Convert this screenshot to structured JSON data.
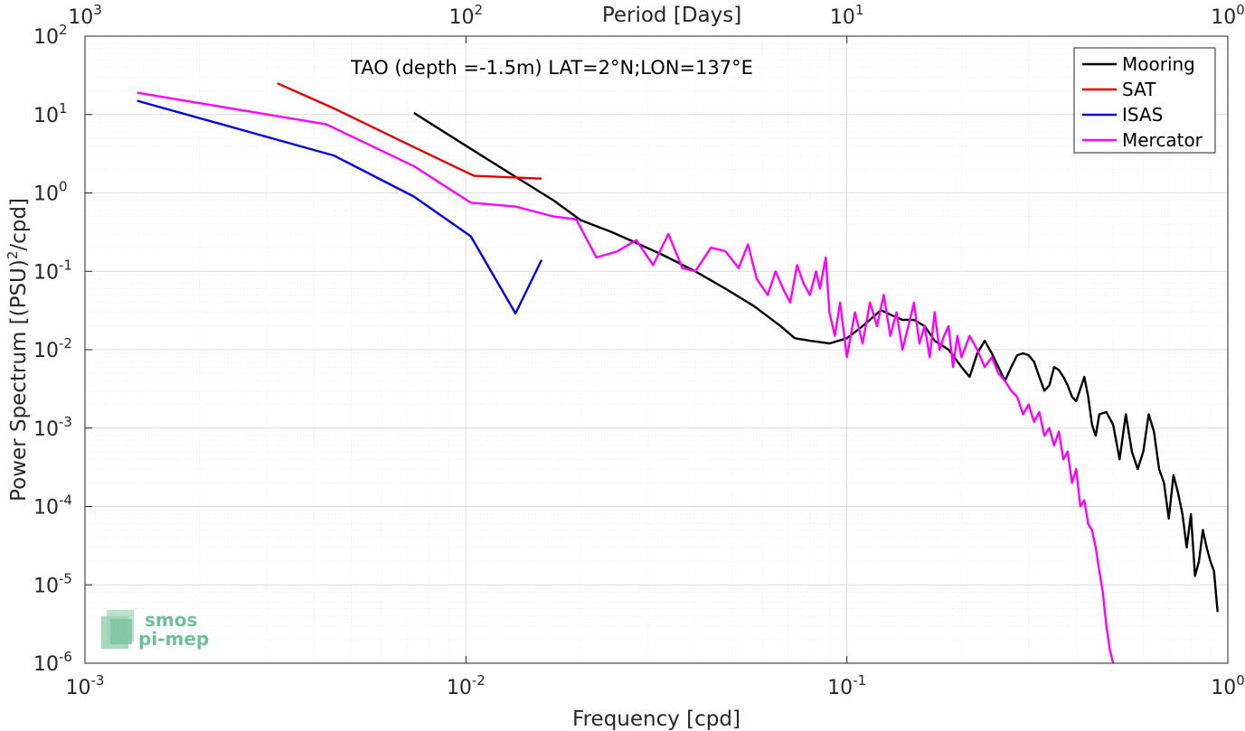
{
  "chart_data": {
    "type": "line",
    "scale": "log-log",
    "annotation": "TAO (depth =-1.5m) LAT=2°N;LON=137°E",
    "xlabel": "Frequency [cpd]",
    "ylabel": "Power Spectrum [(PSU)",
    "ylabel_sup": "2",
    "ylabel_tail": "/cpd]",
    "x2label": "Period [Days]",
    "xlim": [
      0.001,
      1
    ],
    "ylim": [
      1e-06,
      100
    ],
    "grid": true,
    "legend_position": "top-right",
    "x_ticks": [
      {
        "value": 0.001,
        "base": "10",
        "exp": "-3"
      },
      {
        "value": 0.01,
        "base": "10",
        "exp": "-2"
      },
      {
        "value": 0.1,
        "base": "10",
        "exp": "-1"
      },
      {
        "value": 1,
        "base": "10",
        "exp": "0"
      }
    ],
    "x2_ticks": [
      {
        "value": 0.001,
        "base": "10",
        "exp": "3"
      },
      {
        "value": 0.01,
        "base": "10",
        "exp": "2"
      },
      {
        "value": 0.1,
        "base": "10",
        "exp": "1"
      },
      {
        "value": 1,
        "base": "10",
        "exp": "0"
      }
    ],
    "y_ticks": [
      {
        "value": 100,
        "base": "10",
        "exp": "2"
      },
      {
        "value": 10,
        "base": "10",
        "exp": "1"
      },
      {
        "value": 1,
        "base": "10",
        "exp": "0"
      },
      {
        "value": 0.1,
        "base": "10",
        "exp": "-1"
      },
      {
        "value": 0.01,
        "base": "10",
        "exp": "-2"
      },
      {
        "value": 0.001,
        "base": "10",
        "exp": "-3"
      },
      {
        "value": 0.0001,
        "base": "10",
        "exp": "-4"
      },
      {
        "value": 1e-05,
        "base": "10",
        "exp": "-5"
      },
      {
        "value": 1e-06,
        "base": "10",
        "exp": "-6"
      }
    ],
    "series": [
      {
        "name": "Mooring",
        "color": "#000000",
        "x": [
          0.0073,
          0.01,
          0.013,
          0.017,
          0.02,
          0.024,
          0.028,
          0.033,
          0.04,
          0.048,
          0.057,
          0.067,
          0.073,
          0.08,
          0.09,
          0.1,
          0.11,
          0.123,
          0.13,
          0.14,
          0.15,
          0.16,
          0.17,
          0.185,
          0.2,
          0.21,
          0.22,
          0.23,
          0.24,
          0.25,
          0.26,
          0.27,
          0.28,
          0.29,
          0.3,
          0.31,
          0.32,
          0.33,
          0.34,
          0.35,
          0.36,
          0.37,
          0.38,
          0.39,
          0.4,
          0.42,
          0.43,
          0.44,
          0.45,
          0.46,
          0.48,
          0.5,
          0.52,
          0.54,
          0.56,
          0.58,
          0.6,
          0.62,
          0.64,
          0.66,
          0.68,
          0.7,
          0.72,
          0.74,
          0.76,
          0.78,
          0.8,
          0.82,
          0.84,
          0.86,
          0.88,
          0.9,
          0.92,
          0.94
        ],
        "y": [
          10.5,
          4,
          1.8,
          0.8,
          0.45,
          0.32,
          0.23,
          0.16,
          0.1,
          0.06,
          0.036,
          0.02,
          0.014,
          0.013,
          0.012,
          0.014,
          0.02,
          0.032,
          0.028,
          0.024,
          0.024,
          0.02,
          0.013,
          0.01,
          0.006,
          0.0045,
          0.009,
          0.013,
          0.009,
          0.006,
          0.004,
          0.006,
          0.0085,
          0.009,
          0.0085,
          0.007,
          0.0045,
          0.003,
          0.0035,
          0.006,
          0.0055,
          0.0045,
          0.0035,
          0.0025,
          0.0022,
          0.0045,
          0.0025,
          0.0011,
          0.0008,
          0.0015,
          0.0016,
          0.0011,
          0.0004,
          0.0015,
          0.0005,
          0.0003,
          0.0005,
          0.0015,
          0.0009,
          0.0003,
          0.0002,
          7e-05,
          0.00025,
          0.00015,
          8e-05,
          3e-05,
          8e-05,
          1.3e-05,
          2e-05,
          5e-05,
          3e-05,
          2e-05,
          1.5e-05,
          4.5e-06
        ]
      },
      {
        "name": "SAT",
        "color": "#e50000",
        "x": [
          0.0032,
          0.0045,
          0.0075,
          0.0105,
          0.0158
        ],
        "y": [
          25,
          12,
          3.6,
          1.65,
          1.52
        ]
      },
      {
        "name": "ISAS",
        "color": "#0000e5",
        "x": [
          0.00137,
          0.0045,
          0.0073,
          0.0103,
          0.0135,
          0.0158
        ],
        "y": [
          15,
          3,
          0.9,
          0.28,
          0.029,
          0.14
        ]
      },
      {
        "name": "Mercator",
        "color": "#ff00ff",
        "x": [
          0.00137,
          0.0043,
          0.0073,
          0.0103,
          0.0135,
          0.017,
          0.0195,
          0.022,
          0.025,
          0.028,
          0.031,
          0.034,
          0.037,
          0.04,
          0.044,
          0.048,
          0.052,
          0.055,
          0.058,
          0.062,
          0.065,
          0.068,
          0.071,
          0.074,
          0.077,
          0.08,
          0.083,
          0.085,
          0.088,
          0.09,
          0.093,
          0.096,
          0.1,
          0.105,
          0.11,
          0.115,
          0.12,
          0.125,
          0.13,
          0.135,
          0.14,
          0.145,
          0.15,
          0.155,
          0.16,
          0.165,
          0.17,
          0.175,
          0.18,
          0.185,
          0.19,
          0.195,
          0.2,
          0.21,
          0.22,
          0.23,
          0.24,
          0.25,
          0.26,
          0.27,
          0.28,
          0.29,
          0.3,
          0.31,
          0.32,
          0.33,
          0.34,
          0.35,
          0.36,
          0.37,
          0.38,
          0.39,
          0.4,
          0.41,
          0.42,
          0.43,
          0.44,
          0.45,
          0.46,
          0.47,
          0.48,
          0.49,
          0.5
        ],
        "y": [
          19,
          7.5,
          2.2,
          0.75,
          0.67,
          0.5,
          0.46,
          0.15,
          0.18,
          0.25,
          0.12,
          0.3,
          0.11,
          0.1,
          0.2,
          0.18,
          0.11,
          0.22,
          0.08,
          0.05,
          0.1,
          0.06,
          0.04,
          0.12,
          0.07,
          0.05,
          0.1,
          0.06,
          0.15,
          0.03,
          0.015,
          0.04,
          0.008,
          0.03,
          0.012,
          0.04,
          0.02,
          0.05,
          0.015,
          0.03,
          0.01,
          0.02,
          0.04,
          0.012,
          0.02,
          0.008,
          0.03,
          0.01,
          0.015,
          0.02,
          0.006,
          0.015,
          0.008,
          0.015,
          0.01,
          0.006,
          0.008,
          0.005,
          0.004,
          0.003,
          0.0025,
          0.0015,
          0.002,
          0.0012,
          0.0016,
          0.0008,
          0.001,
          0.0006,
          0.0009,
          0.0004,
          0.0005,
          0.0002,
          0.0003,
          0.0001,
          0.00012,
          6e-05,
          5e-05,
          3e-05,
          1.5e-05,
          8e-06,
          3e-06,
          1.5e-06,
          1e-06
        ]
      }
    ]
  },
  "logo": {
    "line1": "smos",
    "line2": "pi-mep"
  }
}
